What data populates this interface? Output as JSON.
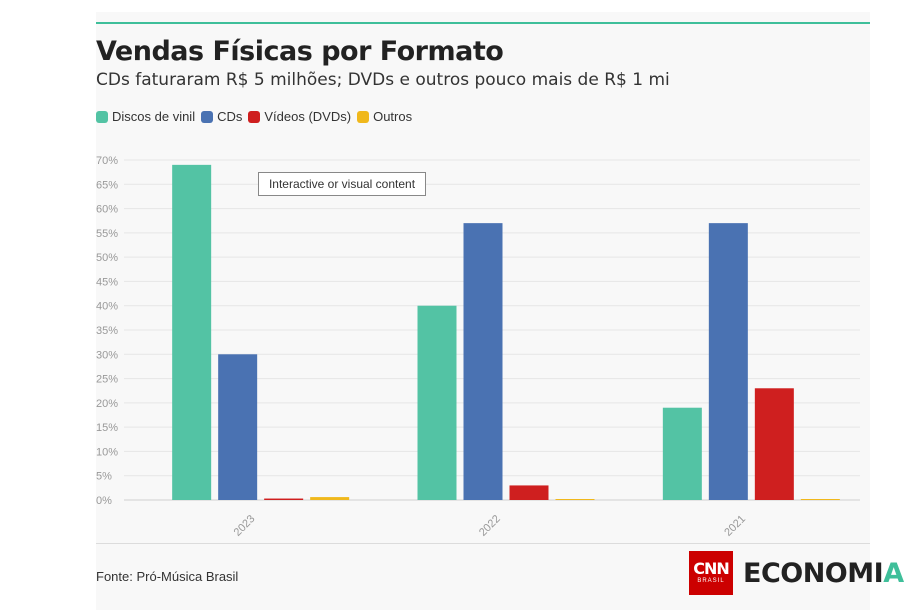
{
  "header": {
    "title": "Vendas Físicas por Formato",
    "subtitle": "CDs faturaram R$ 5 milhões; DVDs e outros pouco mais de R$ 1 mi"
  },
  "tooltip": "Interactive or visual content",
  "footer": {
    "source": "Fonte: Pró-Música Brasil",
    "logo_cnn": "CNN",
    "logo_brasil": "BRASIL",
    "logo_economia": "ECONOMI",
    "logo_economia_last": "A"
  },
  "colors": {
    "accent": "#3fbf9a",
    "cnn_red": "#cc0000"
  },
  "chart_data": {
    "type": "bar",
    "categories": [
      "2023",
      "2022",
      "2021"
    ],
    "series": [
      {
        "name": "Discos de vinil",
        "color": "#53c3a4",
        "values": [
          69,
          40,
          19
        ]
      },
      {
        "name": "CDs",
        "color": "#4a72b2",
        "values": [
          30,
          57,
          57
        ]
      },
      {
        "name": "Vídeos (DVDs)",
        "color": "#cf1f1f",
        "values": [
          0.3,
          3,
          23
        ]
      },
      {
        "name": "Outros",
        "color": "#f0b81c",
        "values": [
          0.6,
          0.2,
          0.2
        ]
      }
    ],
    "ylim": [
      0,
      70
    ],
    "yticks": [
      "0%",
      "5%",
      "10%",
      "15%",
      "20%",
      "25%",
      "30%",
      "35%",
      "40%",
      "45%",
      "50%",
      "55%",
      "60%",
      "65%",
      "70%"
    ],
    "grid": true,
    "legend": "top-left"
  }
}
